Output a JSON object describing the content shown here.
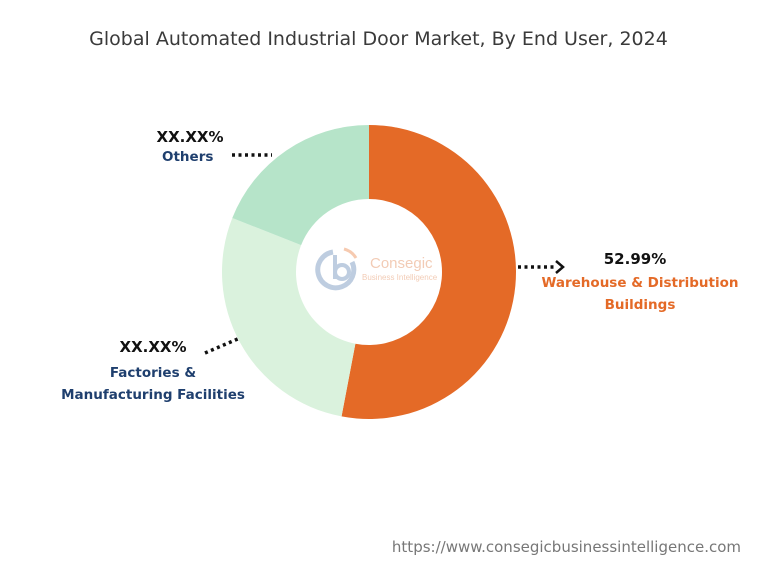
{
  "chart_data": {
    "type": "pie",
    "variant": "donut",
    "title": "Global Automated Industrial Door Market, By End User, 2024",
    "slices": [
      {
        "name": "Warehouse & Distribution Buildings",
        "label": "52.99%",
        "value": 52.99,
        "color": "#E46A27",
        "label_color": "#E46A27"
      },
      {
        "name": "Factories & Manufacturing Facilities",
        "label": "XX.XX%",
        "value": 28.0,
        "color": "#DAF2DD",
        "label_color": "#1F3F6E"
      },
      {
        "name": "Others",
        "label": "XX.XX%",
        "value": 19.01,
        "color": "#B6E4C9",
        "label_color": "#1F3F6E"
      }
    ]
  },
  "logo": {
    "brand": "Consegic",
    "tagline": "Business Intelligence"
  },
  "footer": {
    "url": "https://www.consegicbusinessintelligence.com"
  }
}
